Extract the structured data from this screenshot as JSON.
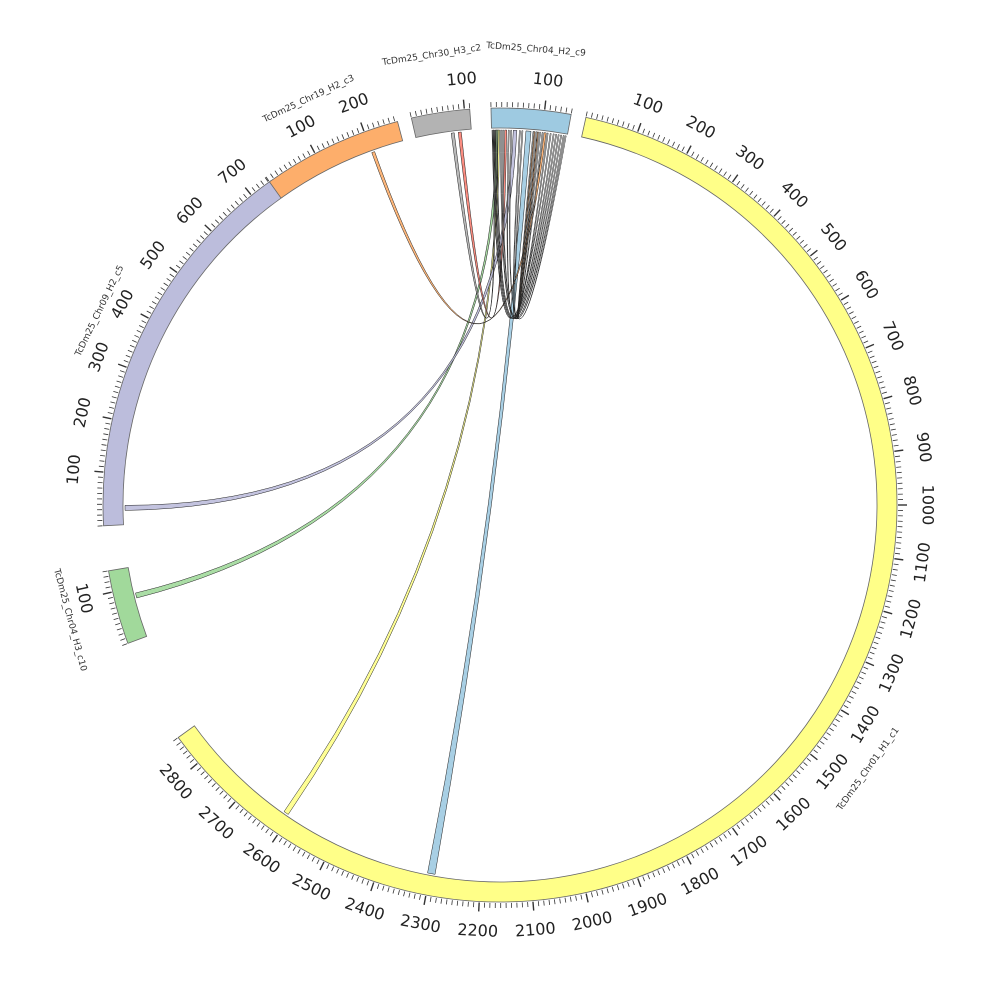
{
  "chart_data": {
    "type": "chord",
    "background": "#ffffff",
    "segments": [
      {
        "name": "TcDm25_Chr01_H1_c1",
        "length": 2860,
        "color": "#ffff88",
        "ticks": [
          "100",
          "200",
          "300",
          "400",
          "500",
          "600",
          "700",
          "800",
          "900",
          "1000",
          "1100",
          "1200",
          "1300",
          "1400",
          "1500",
          "1600",
          "1700",
          "1800",
          "1900",
          "2000",
          "2100",
          "2200",
          "2300",
          "2400",
          "2500",
          "2600",
          "2700",
          "2800"
        ]
      },
      {
        "name": "TcDm25_Chr04_H3_c10",
        "length": 140,
        "color": "#a1d99b",
        "ticks": [
          "100"
        ]
      },
      {
        "name": "TcDm25_Chr09_H2_c5",
        "length": 745,
        "color": "#bcbddc",
        "ticks": [
          "100",
          "200",
          "300",
          "400",
          "500",
          "600",
          "700"
        ]
      },
      {
        "name": "TcDm25_Chr19_H2_c3",
        "length": 265,
        "color": "#fdae6b",
        "ticks": [
          "100",
          "200"
        ]
      },
      {
        "name": "TcDm25_Chr30_H3_c2",
        "length": 110,
        "color": "#b3b3b3",
        "ticks": [
          "100"
        ]
      },
      {
        "name": "TcDm25_Chr04_H2_c9",
        "length": 150,
        "color": "#9ecae1",
        "ticks": [
          "100"
        ]
      }
    ],
    "links": [
      {
        "from": "TcDm25_Chr01_H1_c1",
        "from_pos": [
          2290,
          2305
        ],
        "to": "TcDm25_Chr04_H2_c9",
        "to_pos": [
          68,
          78
        ],
        "color": "#9ecae1"
      },
      {
        "from": "TcDm25_Chr01_H1_c1",
        "from_pos": [
          2605,
          2615
        ],
        "to": "TcDm25_Chr04_H2_c9",
        "to_pos": [
          13,
          16
        ],
        "color": "#ffff88"
      },
      {
        "from": "TcDm25_Chr04_H3_c10",
        "from_pos": [
          78,
          88
        ],
        "to": "TcDm25_Chr04_H2_c9",
        "to_pos": [
          8,
          13
        ],
        "color": "#a1d99b"
      },
      {
        "from": "TcDm25_Chr09_H2_c5",
        "from_pos": [
          28,
          38
        ],
        "to": "TcDm25_Chr04_H2_c9",
        "to_pos": [
          43,
          50
        ],
        "color": "#bcbddc"
      },
      {
        "from": "TcDm25_Chr19_H2_c3",
        "from_pos": [
          200,
          206
        ],
        "to": "TcDm25_Chr04_H2_c9",
        "to_pos": [
          104,
          108
        ],
        "color": "#fdae6b"
      },
      {
        "from": "TcDm25_Chr30_H3_c2",
        "from_pos": [
          70,
          76
        ],
        "to": "TcDm25_Chr04_H2_c9",
        "to_pos": [
          3,
          6
        ],
        "color": "#b3b3b3"
      },
      {
        "from": "TcDm25_Chr30_H3_c2",
        "from_pos": [
          84,
          90
        ],
        "to": "TcDm25_Chr04_H2_c9",
        "to_pos": [
          26,
          30
        ],
        "color": "#fb8072"
      },
      {
        "from": "TcDm25_Chr04_H2_c9",
        "from_pos": [
          1,
          2
        ],
        "to": "TcDm25_Chr04_H2_c9",
        "to_pos": [
          116,
          118
        ],
        "color": "#ffffff"
      },
      {
        "from": "TcDm25_Chr04_H2_c9",
        "from_pos": [
          4,
          5
        ],
        "to": "TcDm25_Chr04_H2_c9",
        "to_pos": [
          122,
          124
        ],
        "color": "#ffffff"
      },
      {
        "from": "TcDm25_Chr04_H2_c9",
        "from_pos": [
          7,
          8
        ],
        "to": "TcDm25_Chr04_H2_c9",
        "to_pos": [
          127,
          129
        ],
        "color": "#ffffff"
      },
      {
        "from": "TcDm25_Chr04_H2_c9",
        "from_pos": [
          10,
          11
        ],
        "to": "TcDm25_Chr04_H2_c9",
        "to_pos": [
          132,
          134
        ],
        "color": "#ffffff"
      },
      {
        "from": "TcDm25_Chr04_H2_c9",
        "from_pos": [
          18,
          20
        ],
        "to": "TcDm25_Chr04_H2_c9",
        "to_pos": [
          137,
          139
        ],
        "color": "#ffffff"
      },
      {
        "from": "TcDm25_Chr04_H2_c9",
        "from_pos": [
          22,
          24
        ],
        "to": "TcDm25_Chr04_H2_c9",
        "to_pos": [
          142,
          144
        ],
        "color": "#ffffff"
      },
      {
        "from": "TcDm25_Chr04_H2_c9",
        "from_pos": [
          33,
          35
        ],
        "to": "TcDm25_Chr04_H2_c9",
        "to_pos": [
          110,
          112
        ],
        "color": "#ffffff"
      },
      {
        "from": "TcDm25_Chr04_H2_c9",
        "from_pos": [
          38,
          40
        ],
        "to": "TcDm25_Chr04_H2_c9",
        "to_pos": [
          146,
          148
        ],
        "color": "#ffffff"
      },
      {
        "from": "TcDm25_Chr04_H2_c9",
        "from_pos": [
          55,
          57
        ],
        "to": "TcDm25_Chr04_H2_c9",
        "to_pos": [
          95,
          97
        ],
        "color": "#ffffff"
      },
      {
        "from": "TcDm25_Chr04_H2_c9",
        "from_pos": [
          60,
          62
        ],
        "to": "TcDm25_Chr04_H2_c9",
        "to_pos": [
          100,
          102
        ],
        "color": "#ffffff"
      },
      {
        "from": "TcDm25_Chr04_H2_c9",
        "from_pos": [
          82,
          84
        ],
        "to": "TcDm25_Chr04_H2_c9",
        "to_pos": [
          88,
          90
        ],
        "color": "#ffffff"
      },
      {
        "from": "TcDm25_Chr04_H2_c9",
        "from_pos": [
          84,
          86
        ],
        "to": "TcDm25_Chr04_H2_c9",
        "to_pos": [
          91,
          93
        ],
        "color": "#fdae6b"
      }
    ]
  }
}
